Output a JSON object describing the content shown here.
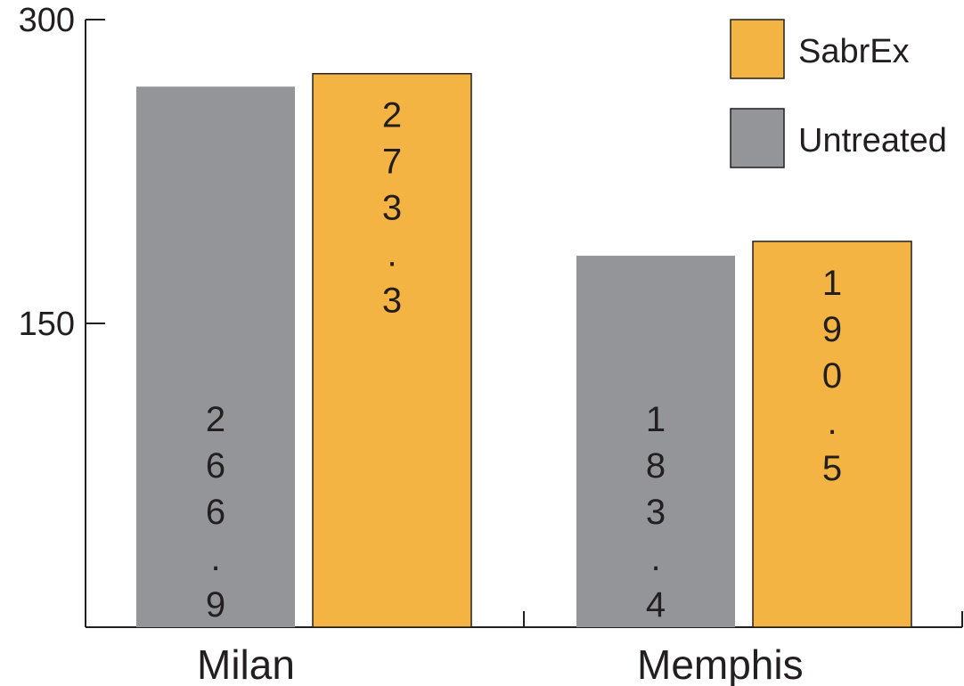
{
  "chart_data": {
    "type": "bar",
    "title": "",
    "xlabel": "",
    "ylabel": "",
    "categories": [
      "Milan",
      "Memphis"
    ],
    "series": [
      {
        "name": "Untreated",
        "color": "#939598",
        "values": [
          266.9,
          183.4
        ],
        "labels": [
          "266.9",
          "183.4"
        ],
        "label_position": "bottom"
      },
      {
        "name": "SabrEx",
        "color": "#f4b443",
        "values": [
          273.3,
          190.5
        ],
        "labels": [
          "273.3",
          "190.5"
        ],
        "label_position": "top"
      }
    ],
    "ylim": [
      0,
      300
    ],
    "yticks": [
      150,
      300
    ],
    "ytick_labels": [
      "150",
      "300"
    ],
    "grid": false,
    "legend": {
      "position": "top-right",
      "entries": [
        "SabrEx",
        "Untreated"
      ]
    }
  }
}
